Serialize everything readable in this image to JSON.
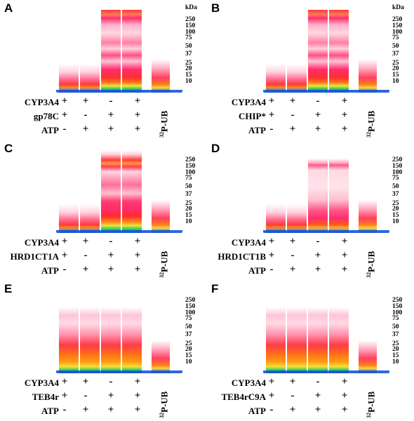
{
  "figure": {
    "kda_label": "kDa",
    "markers": [
      "250",
      "150",
      "100",
      "75",
      "50",
      "37",
      "25",
      "20",
      "15",
      "10"
    ],
    "ub_label_sup": "32",
    "ub_label": "P-UB",
    "row1_label": "CYP3A4",
    "row3_label": "ATP",
    "row1_signs": [
      "+",
      "+",
      "-",
      "+"
    ],
    "row2_signs": [
      "+",
      "-",
      "+",
      "+"
    ],
    "row3_signs": [
      "-",
      "+",
      "+",
      "+"
    ],
    "panels": [
      {
        "letter": "A",
        "row2_label": "gp78C"
      },
      {
        "letter": "B",
        "row2_label": "CHIP*"
      },
      {
        "letter": "C",
        "row2_label": "HRD1CT1A"
      },
      {
        "letter": "D",
        "row2_label": "HRD1CT1B"
      },
      {
        "letter": "E",
        "row2_label": "TEB4r"
      },
      {
        "letter": "F",
        "row2_label": "TEB4rC9A"
      }
    ]
  }
}
